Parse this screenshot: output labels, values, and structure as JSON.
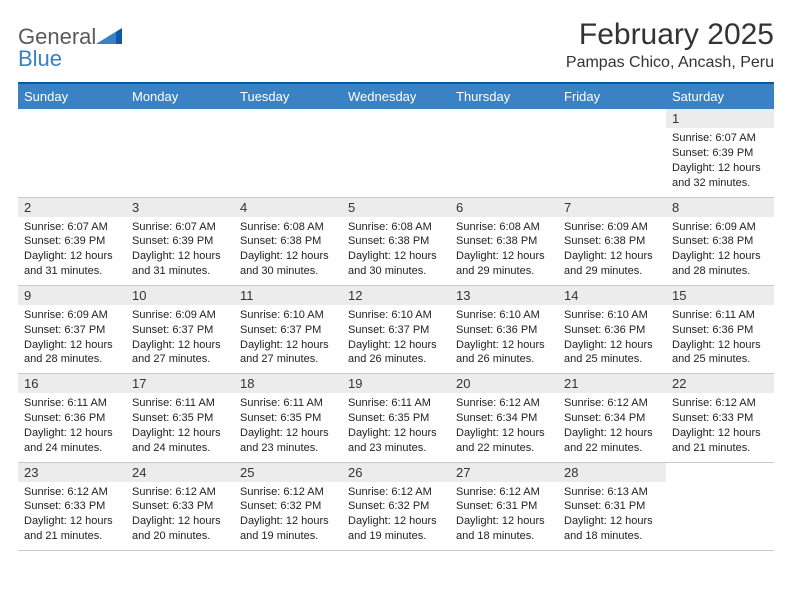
{
  "logo": {
    "word1": "General",
    "word2": "Blue"
  },
  "title": "February 2025",
  "location": "Pampas Chico, Ancash, Peru",
  "colors": {
    "header_bar": "#3b82c4",
    "rule": "#065a9e",
    "daynum_bg": "#ececec",
    "logo_gray": "#5a5a5a",
    "logo_blue": "#3b7fc4"
  },
  "weekdays": [
    "Sunday",
    "Monday",
    "Tuesday",
    "Wednesday",
    "Thursday",
    "Friday",
    "Saturday"
  ],
  "weeks": [
    [
      {
        "n": "",
        "sunrise": "",
        "sunset": "",
        "daylight": ""
      },
      {
        "n": "",
        "sunrise": "",
        "sunset": "",
        "daylight": ""
      },
      {
        "n": "",
        "sunrise": "",
        "sunset": "",
        "daylight": ""
      },
      {
        "n": "",
        "sunrise": "",
        "sunset": "",
        "daylight": ""
      },
      {
        "n": "",
        "sunrise": "",
        "sunset": "",
        "daylight": ""
      },
      {
        "n": "",
        "sunrise": "",
        "sunset": "",
        "daylight": ""
      },
      {
        "n": "1",
        "sunrise": "Sunrise: 6:07 AM",
        "sunset": "Sunset: 6:39 PM",
        "daylight": "Daylight: 12 hours and 32 minutes."
      }
    ],
    [
      {
        "n": "2",
        "sunrise": "Sunrise: 6:07 AM",
        "sunset": "Sunset: 6:39 PM",
        "daylight": "Daylight: 12 hours and 31 minutes."
      },
      {
        "n": "3",
        "sunrise": "Sunrise: 6:07 AM",
        "sunset": "Sunset: 6:39 PM",
        "daylight": "Daylight: 12 hours and 31 minutes."
      },
      {
        "n": "4",
        "sunrise": "Sunrise: 6:08 AM",
        "sunset": "Sunset: 6:38 PM",
        "daylight": "Daylight: 12 hours and 30 minutes."
      },
      {
        "n": "5",
        "sunrise": "Sunrise: 6:08 AM",
        "sunset": "Sunset: 6:38 PM",
        "daylight": "Daylight: 12 hours and 30 minutes."
      },
      {
        "n": "6",
        "sunrise": "Sunrise: 6:08 AM",
        "sunset": "Sunset: 6:38 PM",
        "daylight": "Daylight: 12 hours and 29 minutes."
      },
      {
        "n": "7",
        "sunrise": "Sunrise: 6:09 AM",
        "sunset": "Sunset: 6:38 PM",
        "daylight": "Daylight: 12 hours and 29 minutes."
      },
      {
        "n": "8",
        "sunrise": "Sunrise: 6:09 AM",
        "sunset": "Sunset: 6:38 PM",
        "daylight": "Daylight: 12 hours and 28 minutes."
      }
    ],
    [
      {
        "n": "9",
        "sunrise": "Sunrise: 6:09 AM",
        "sunset": "Sunset: 6:37 PM",
        "daylight": "Daylight: 12 hours and 28 minutes."
      },
      {
        "n": "10",
        "sunrise": "Sunrise: 6:09 AM",
        "sunset": "Sunset: 6:37 PM",
        "daylight": "Daylight: 12 hours and 27 minutes."
      },
      {
        "n": "11",
        "sunrise": "Sunrise: 6:10 AM",
        "sunset": "Sunset: 6:37 PM",
        "daylight": "Daylight: 12 hours and 27 minutes."
      },
      {
        "n": "12",
        "sunrise": "Sunrise: 6:10 AM",
        "sunset": "Sunset: 6:37 PM",
        "daylight": "Daylight: 12 hours and 26 minutes."
      },
      {
        "n": "13",
        "sunrise": "Sunrise: 6:10 AM",
        "sunset": "Sunset: 6:36 PM",
        "daylight": "Daylight: 12 hours and 26 minutes."
      },
      {
        "n": "14",
        "sunrise": "Sunrise: 6:10 AM",
        "sunset": "Sunset: 6:36 PM",
        "daylight": "Daylight: 12 hours and 25 minutes."
      },
      {
        "n": "15",
        "sunrise": "Sunrise: 6:11 AM",
        "sunset": "Sunset: 6:36 PM",
        "daylight": "Daylight: 12 hours and 25 minutes."
      }
    ],
    [
      {
        "n": "16",
        "sunrise": "Sunrise: 6:11 AM",
        "sunset": "Sunset: 6:36 PM",
        "daylight": "Daylight: 12 hours and 24 minutes."
      },
      {
        "n": "17",
        "sunrise": "Sunrise: 6:11 AM",
        "sunset": "Sunset: 6:35 PM",
        "daylight": "Daylight: 12 hours and 24 minutes."
      },
      {
        "n": "18",
        "sunrise": "Sunrise: 6:11 AM",
        "sunset": "Sunset: 6:35 PM",
        "daylight": "Daylight: 12 hours and 23 minutes."
      },
      {
        "n": "19",
        "sunrise": "Sunrise: 6:11 AM",
        "sunset": "Sunset: 6:35 PM",
        "daylight": "Daylight: 12 hours and 23 minutes."
      },
      {
        "n": "20",
        "sunrise": "Sunrise: 6:12 AM",
        "sunset": "Sunset: 6:34 PM",
        "daylight": "Daylight: 12 hours and 22 minutes."
      },
      {
        "n": "21",
        "sunrise": "Sunrise: 6:12 AM",
        "sunset": "Sunset: 6:34 PM",
        "daylight": "Daylight: 12 hours and 22 minutes."
      },
      {
        "n": "22",
        "sunrise": "Sunrise: 6:12 AM",
        "sunset": "Sunset: 6:33 PM",
        "daylight": "Daylight: 12 hours and 21 minutes."
      }
    ],
    [
      {
        "n": "23",
        "sunrise": "Sunrise: 6:12 AM",
        "sunset": "Sunset: 6:33 PM",
        "daylight": "Daylight: 12 hours and 21 minutes."
      },
      {
        "n": "24",
        "sunrise": "Sunrise: 6:12 AM",
        "sunset": "Sunset: 6:33 PM",
        "daylight": "Daylight: 12 hours and 20 minutes."
      },
      {
        "n": "25",
        "sunrise": "Sunrise: 6:12 AM",
        "sunset": "Sunset: 6:32 PM",
        "daylight": "Daylight: 12 hours and 19 minutes."
      },
      {
        "n": "26",
        "sunrise": "Sunrise: 6:12 AM",
        "sunset": "Sunset: 6:32 PM",
        "daylight": "Daylight: 12 hours and 19 minutes."
      },
      {
        "n": "27",
        "sunrise": "Sunrise: 6:12 AM",
        "sunset": "Sunset: 6:31 PM",
        "daylight": "Daylight: 12 hours and 18 minutes."
      },
      {
        "n": "28",
        "sunrise": "Sunrise: 6:13 AM",
        "sunset": "Sunset: 6:31 PM",
        "daylight": "Daylight: 12 hours and 18 minutes."
      },
      {
        "n": "",
        "sunrise": "",
        "sunset": "",
        "daylight": ""
      }
    ]
  ]
}
